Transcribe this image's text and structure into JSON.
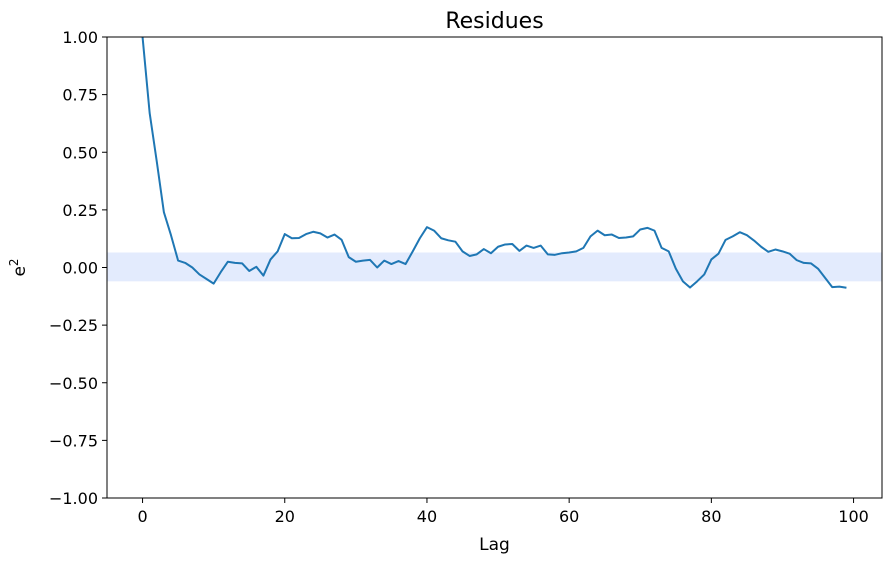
{
  "chart_data": {
    "type": "line",
    "title": "Residues",
    "xlabel": "Lag",
    "ylabel": "e",
    "ylabel_superscript": "2",
    "xlim": [
      -5,
      104
    ],
    "ylim": [
      -1.0,
      1.0
    ],
    "xticks": [
      0,
      20,
      40,
      60,
      80,
      100
    ],
    "yticks": [
      -1.0,
      -0.75,
      -0.5,
      -0.25,
      0.0,
      0.25,
      0.5,
      0.75,
      1.0
    ],
    "ytick_labels": [
      "−1.00",
      "−0.75",
      "−0.50",
      "−0.25",
      "0.00",
      "0.25",
      "0.50",
      "0.75",
      "1.00"
    ],
    "xtick_labels": [
      "0",
      "20",
      "40",
      "60",
      "80",
      "100"
    ],
    "grid": false,
    "band": {
      "y_low": -0.06,
      "y_high": 0.065,
      "color": "#e3ebfd"
    },
    "series": [
      {
        "color": "#1f77b4",
        "x": [
          0,
          1,
          2,
          3,
          4,
          5,
          6,
          7,
          8,
          9,
          10,
          11,
          12,
          13,
          14,
          15,
          16,
          17,
          18,
          19,
          20,
          21,
          22,
          23,
          24,
          25,
          26,
          27,
          28,
          29,
          30,
          31,
          32,
          33,
          34,
          35,
          36,
          37,
          38,
          39,
          40,
          41,
          42,
          43,
          44,
          45,
          46,
          47,
          48,
          49,
          50,
          51,
          52,
          53,
          54,
          55,
          56,
          57,
          58,
          59,
          60,
          61,
          62,
          63,
          64,
          65,
          66,
          67,
          68,
          69,
          70,
          71,
          72,
          73,
          74,
          75,
          76,
          77,
          78,
          79,
          80,
          81,
          82,
          83,
          84,
          85,
          86,
          87,
          88,
          89,
          90,
          91,
          92,
          93,
          94,
          95,
          96,
          97,
          98,
          99
        ],
        "y": [
          1.0,
          0.67,
          0.46,
          0.24,
          0.14,
          0.03,
          0.02,
          0.0,
          -0.03,
          -0.05,
          -0.07,
          -0.02,
          0.025,
          0.02,
          0.018,
          -0.015,
          0.003,
          -0.035,
          0.035,
          0.07,
          0.145,
          0.127,
          0.128,
          0.145,
          0.155,
          0.148,
          0.13,
          0.143,
          0.12,
          0.045,
          0.025,
          0.03,
          0.033,
          0.0,
          0.03,
          0.015,
          0.028,
          0.015,
          0.07,
          0.127,
          0.175,
          0.16,
          0.127,
          0.118,
          0.112,
          0.07,
          0.05,
          0.057,
          0.08,
          0.062,
          0.09,
          0.1,
          0.102,
          0.072,
          0.095,
          0.085,
          0.095,
          0.057,
          0.055,
          0.062,
          0.065,
          0.07,
          0.085,
          0.135,
          0.16,
          0.14,
          0.143,
          0.128,
          0.13,
          0.135,
          0.165,
          0.172,
          0.16,
          0.085,
          0.07,
          -0.005,
          -0.06,
          -0.087,
          -0.06,
          -0.03,
          0.035,
          0.06,
          0.12,
          0.135,
          0.153,
          0.14,
          0.117,
          0.09,
          0.068,
          0.078,
          0.07,
          0.06,
          0.032,
          0.02,
          0.018,
          -0.005,
          -0.045,
          -0.085,
          -0.083,
          -0.088
        ]
      }
    ]
  }
}
